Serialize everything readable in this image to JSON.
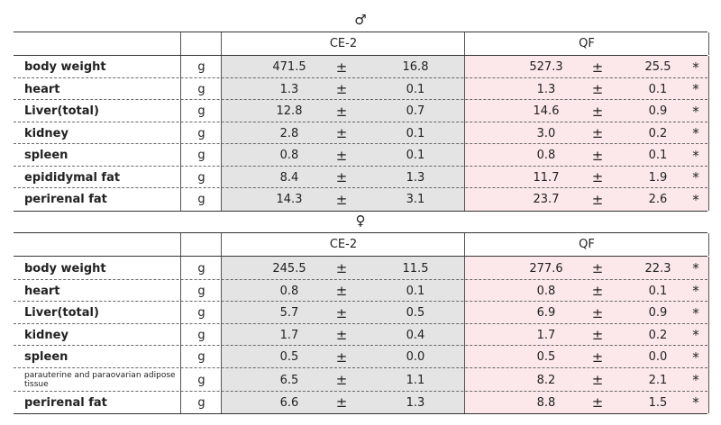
{
  "sections": [
    {
      "symbol": "♂",
      "group_labels": {
        "ce": "CE-2",
        "qf": "QF"
      },
      "rows": [
        {
          "name": "body weight",
          "unit": "g",
          "ce_mean": "471.5",
          "ce_pm": "±",
          "ce_sd": "16.8",
          "qf_mean": "527.3",
          "qf_pm": "±",
          "qf_sd": "25.5",
          "sig": "*"
        },
        {
          "name": "heart",
          "unit": "g",
          "ce_mean": "1.3",
          "ce_pm": "±",
          "ce_sd": "0.1",
          "qf_mean": "1.3",
          "qf_pm": "±",
          "qf_sd": "0.1",
          "sig": "*"
        },
        {
          "name": "Liver(total)",
          "unit": "g",
          "ce_mean": "12.8",
          "ce_pm": "±",
          "ce_sd": "0.7",
          "qf_mean": "14.6",
          "qf_pm": "±",
          "qf_sd": "0.9",
          "sig": "*"
        },
        {
          "name": "kidney",
          "unit": "g",
          "ce_mean": "2.8",
          "ce_pm": "±",
          "ce_sd": "0.1",
          "qf_mean": "3.0",
          "qf_pm": "±",
          "qf_sd": "0.2",
          "sig": "*"
        },
        {
          "name": "spleen",
          "unit": "g",
          "ce_mean": "0.8",
          "ce_pm": "±",
          "ce_sd": "0.1",
          "qf_mean": "0.8",
          "qf_pm": "±",
          "qf_sd": "0.1",
          "sig": "*"
        },
        {
          "name": "epididymal fat",
          "unit": "g",
          "ce_mean": "8.4",
          "ce_pm": "±",
          "ce_sd": "1.3",
          "qf_mean": "11.7",
          "qf_pm": "±",
          "qf_sd": "1.9",
          "sig": "*"
        },
        {
          "name": "perirenal fat",
          "unit": "g",
          "ce_mean": "14.3",
          "ce_pm": "±",
          "ce_sd": "3.1",
          "qf_mean": "23.7",
          "qf_pm": "±",
          "qf_sd": "2.6",
          "sig": "*"
        }
      ]
    },
    {
      "symbol": "♀",
      "group_labels": {
        "ce": "CE-2",
        "qf": "QF"
      },
      "rows": [
        {
          "name": "body weight",
          "unit": "g",
          "ce_mean": "245.5",
          "ce_pm": "±",
          "ce_sd": "11.5",
          "qf_mean": "277.6",
          "qf_pm": "±",
          "qf_sd": "22.3",
          "sig": "*"
        },
        {
          "name": "heart",
          "unit": "g",
          "ce_mean": "0.8",
          "ce_pm": "±",
          "ce_sd": "0.1",
          "qf_mean": "0.8",
          "qf_pm": "±",
          "qf_sd": "0.1",
          "sig": "*"
        },
        {
          "name": "Liver(total)",
          "unit": "g",
          "ce_mean": "5.7",
          "ce_pm": "±",
          "ce_sd": "0.5",
          "qf_mean": "6.9",
          "qf_pm": "±",
          "qf_sd": "0.9",
          "sig": "*"
        },
        {
          "name": "kidney",
          "unit": "g",
          "ce_mean": "1.7",
          "ce_pm": "±",
          "ce_sd": "0.4",
          "qf_mean": "1.7",
          "qf_pm": "±",
          "qf_sd": "0.2",
          "sig": "*"
        },
        {
          "name": "spleen",
          "unit": "g",
          "ce_mean": "0.5",
          "ce_pm": "±",
          "ce_sd": "0.0",
          "qf_mean": "0.5",
          "qf_pm": "±",
          "qf_sd": "0.0",
          "sig": "*"
        },
        {
          "name": "parauterine and paraovarian adipose tissue",
          "unit": "g",
          "ce_mean": "6.5",
          "ce_pm": "±",
          "ce_sd": "1.1",
          "qf_mean": "8.2",
          "qf_pm": "±",
          "qf_sd": "2.1",
          "sig": "*",
          "small": true
        },
        {
          "name": "perirenal fat",
          "unit": "g",
          "ce_mean": "6.6",
          "ce_pm": "±",
          "ce_sd": "1.3",
          "qf_mean": "8.8",
          "qf_pm": "±",
          "qf_sd": "1.5",
          "sig": "*"
        }
      ]
    }
  ]
}
